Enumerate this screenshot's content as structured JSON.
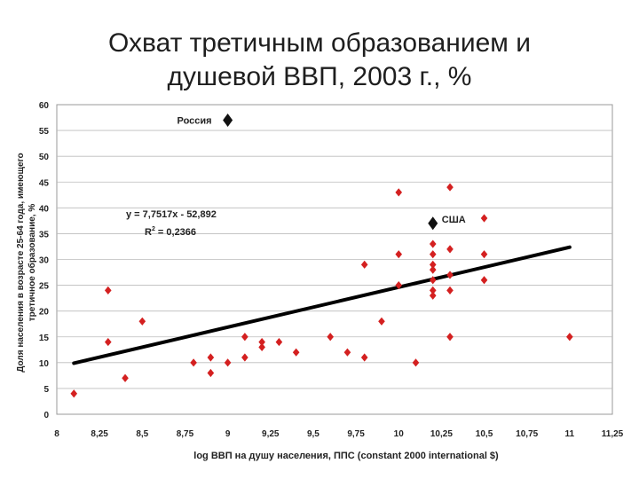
{
  "title_line1": "Охват третичным образованием и",
  "title_line2": "душевой ВВП, 2003 г., %",
  "chart_data": {
    "type": "scatter",
    "title": "Охват третичным образованием и душевой ВВП, 2003 г., %",
    "xlabel": "log ВВП на душу населения, ППС (constant 2000 international $)",
    "ylabel_line1": "Доля населения в возрасте 25-64 года, имеющего",
    "ylabel_line2": "третичное образование, %",
    "xlim": [
      8,
      11.25
    ],
    "ylim": [
      0,
      60
    ],
    "x_ticks": [
      "8",
      "8,25",
      "8,5",
      "8,75",
      "9",
      "9,25",
      "9,5",
      "9,75",
      "10",
      "10,25",
      "10,5",
      "10,75",
      "11",
      "11,25"
    ],
    "y_ticks": [
      "0",
      "5",
      "10",
      "15",
      "20",
      "25",
      "30",
      "35",
      "40",
      "45",
      "50",
      "55",
      "60"
    ],
    "grid": "horizontal",
    "marker_color": "#d42020",
    "highlight_color": "#111111",
    "trendline": {
      "equation": "y = 7,7517x - 52,892",
      "r2_label": "R",
      "r2_sup": "2",
      "r2_value": " = 0,2366",
      "slope": 7.7517,
      "intercept": -52.892,
      "x_range": [
        8.1,
        11
      ]
    },
    "points": [
      {
        "x": 8.1,
        "y": 4
      },
      {
        "x": 8.3,
        "y": 24
      },
      {
        "x": 8.3,
        "y": 14
      },
      {
        "x": 8.4,
        "y": 7
      },
      {
        "x": 8.5,
        "y": 18
      },
      {
        "x": 8.8,
        "y": 10
      },
      {
        "x": 8.9,
        "y": 11
      },
      {
        "x": 8.9,
        "y": 8
      },
      {
        "x": 9.0,
        "y": 10
      },
      {
        "x": 9.1,
        "y": 11
      },
      {
        "x": 9.1,
        "y": 15
      },
      {
        "x": 9.2,
        "y": 14
      },
      {
        "x": 9.2,
        "y": 13
      },
      {
        "x": 9.3,
        "y": 14
      },
      {
        "x": 9.4,
        "y": 12
      },
      {
        "x": 9.6,
        "y": 15
      },
      {
        "x": 9.7,
        "y": 12
      },
      {
        "x": 9.8,
        "y": 11
      },
      {
        "x": 9.8,
        "y": 29
      },
      {
        "x": 9.9,
        "y": 18
      },
      {
        "x": 10.0,
        "y": 43
      },
      {
        "x": 10.0,
        "y": 31
      },
      {
        "x": 10.0,
        "y": 25
      },
      {
        "x": 10.1,
        "y": 10
      },
      {
        "x": 10.2,
        "y": 33
      },
      {
        "x": 10.2,
        "y": 31
      },
      {
        "x": 10.2,
        "y": 29
      },
      {
        "x": 10.2,
        "y": 28
      },
      {
        "x": 10.2,
        "y": 26
      },
      {
        "x": 10.2,
        "y": 24
      },
      {
        "x": 10.2,
        "y": 23
      },
      {
        "x": 10.3,
        "y": 44
      },
      {
        "x": 10.3,
        "y": 32
      },
      {
        "x": 10.3,
        "y": 27
      },
      {
        "x": 10.3,
        "y": 24
      },
      {
        "x": 10.3,
        "y": 15
      },
      {
        "x": 10.5,
        "y": 38
      },
      {
        "x": 10.5,
        "y": 31
      },
      {
        "x": 10.5,
        "y": 26
      },
      {
        "x": 11.0,
        "y": 15
      }
    ],
    "highlights": [
      {
        "label": "Россия",
        "x": 9.0,
        "y": 57
      },
      {
        "label": "США",
        "x": 10.2,
        "y": 37
      }
    ]
  }
}
